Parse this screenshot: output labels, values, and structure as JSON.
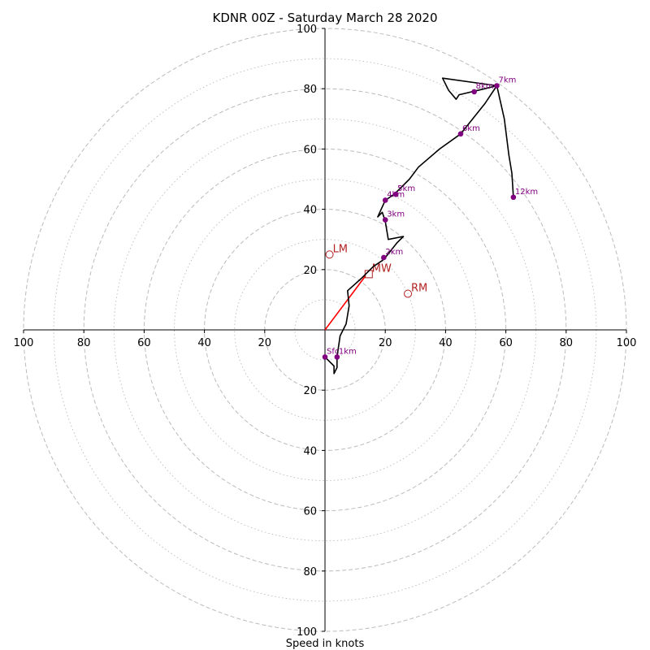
{
  "chart_data": {
    "type": "hodograph",
    "title": "KDNR 00Z - Saturday March 28 2020",
    "xlabel": "Speed in knots",
    "range": 100,
    "rings_major": [
      20,
      40,
      60,
      80,
      100
    ],
    "rings_minor": [
      10,
      30,
      50,
      70,
      90
    ],
    "tick_labels": [
      "100",
      "80",
      "60",
      "40",
      "20",
      "20",
      "40",
      "60",
      "80",
      "100"
    ],
    "tick_values": [
      -100,
      -80,
      -60,
      -40,
      -20,
      20,
      40,
      60,
      80,
      100
    ],
    "grid": true,
    "colors": {
      "trace": "#000000",
      "points": "#800080",
      "motion": "#b22222",
      "mean_wind_vector": "#ff0000",
      "grid": "#bbbbbb"
    },
    "trace": [
      [
        0,
        -9
      ],
      [
        3,
        -12
      ],
      [
        3,
        -14.5
      ],
      [
        4,
        -12.5
      ],
      [
        4,
        -9
      ],
      [
        5,
        -2
      ],
      [
        7,
        2
      ],
      [
        8,
        8
      ],
      [
        7.5,
        13
      ],
      [
        12,
        17
      ],
      [
        16,
        21
      ],
      [
        19,
        23
      ],
      [
        20,
        24
      ],
      [
        24,
        29
      ],
      [
        26,
        31
      ],
      [
        21,
        30
      ],
      [
        20,
        36
      ],
      [
        19,
        39
      ],
      [
        17.5,
        37.5
      ],
      [
        20,
        43
      ],
      [
        23,
        45
      ],
      [
        28,
        50
      ],
      [
        31,
        54
      ],
      [
        38,
        60
      ],
      [
        45,
        65
      ],
      [
        49,
        70
      ],
      [
        53,
        75
      ],
      [
        57,
        81
      ],
      [
        53,
        80
      ],
      [
        44.5,
        78
      ],
      [
        43.5,
        76.5
      ],
      [
        41,
        79.5
      ],
      [
        39,
        83.5
      ],
      [
        57,
        81
      ],
      [
        59.5,
        70
      ],
      [
        61,
        58
      ],
      [
        62,
        52
      ],
      [
        62.5,
        44
      ]
    ],
    "labeled_points": [
      {
        "label": "Sfc",
        "u": 0,
        "v": -9
      },
      {
        "label": "1km",
        "u": 4,
        "v": -9
      },
      {
        "label": "2km",
        "u": 19.5,
        "v": 24
      },
      {
        "label": "3km",
        "u": 20,
        "v": 36.5
      },
      {
        "label": "4km",
        "u": 20,
        "v": 43
      },
      {
        "label": "5km",
        "u": 23.5,
        "v": 45
      },
      {
        "label": "6km",
        "u": 45,
        "v": 65
      },
      {
        "label": "7km",
        "u": 57,
        "v": 81
      },
      {
        "label": "8km",
        "u": 49.5,
        "v": 79
      },
      {
        "label": "12km",
        "u": 62.5,
        "v": 44
      }
    ],
    "storm_motion": [
      {
        "label": "LM",
        "u": 1.5,
        "v": 25,
        "marker": "circle"
      },
      {
        "label": "RM",
        "u": 27.5,
        "v": 12,
        "marker": "circle"
      },
      {
        "label": "MW",
        "u": 14.5,
        "v": 18.5,
        "marker": "square"
      }
    ],
    "mean_wind_vector": {
      "u": 13.5,
      "v": 18
    }
  }
}
